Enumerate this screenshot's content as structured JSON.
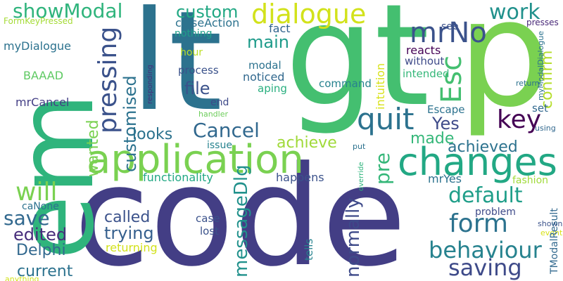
{
  "words": [
    {
      "text": "code",
      "color": "#433e85"
    },
    {
      "text": "gt",
      "color": "#44bf70"
    },
    {
      "text": "lt",
      "color": "#2c728e"
    },
    {
      "text": "p",
      "color": "#7ad151"
    },
    {
      "text": "em",
      "color": "#2fb47c"
    },
    {
      "text": "application",
      "color": "#7ad151"
    },
    {
      "text": "changes",
      "color": "#22a884"
    },
    {
      "text": "dialogue",
      "color": "#d2e21b"
    },
    {
      "text": "showModal",
      "color": "#2fb47c"
    },
    {
      "text": "mrNo",
      "color": "#3b528b"
    },
    {
      "text": "work",
      "color": "#21918c"
    },
    {
      "text": "quit",
      "color": "#2c728e"
    },
    {
      "text": "Esc",
      "color": "#44bf70"
    },
    {
      "text": "key",
      "color": "#440154"
    },
    {
      "text": "pressing",
      "color": "#3b528b"
    },
    {
      "text": "form",
      "color": "#2c728e"
    },
    {
      "text": "default",
      "color": "#1f9e89"
    },
    {
      "text": "saving",
      "color": "#3e4a89"
    },
    {
      "text": "behaviour",
      "color": "#26828e"
    },
    {
      "text": "will",
      "color": "#7ad151"
    },
    {
      "text": "save",
      "color": "#31688e"
    },
    {
      "text": "Cancel",
      "color": "#31688e"
    },
    {
      "text": "pre",
      "color": "#35b779"
    },
    {
      "text": "normally",
      "color": "#3e4a89"
    },
    {
      "text": "messageDlg",
      "color": "#21918c"
    },
    {
      "text": "customised",
      "color": "#2c728e"
    },
    {
      "text": "custom",
      "color": "#22a884"
    },
    {
      "text": "main",
      "color": "#1e9b8a"
    },
    {
      "text": "confirm",
      "color": "#b5de2b"
    },
    {
      "text": "wanted",
      "color": "#7ad151"
    },
    {
      "text": "looks",
      "color": "#2c728e"
    },
    {
      "text": "Yes",
      "color": "#3e4a89"
    },
    {
      "text": "made",
      "color": "#35b779"
    },
    {
      "text": "achieve",
      "color": "#a0da39"
    },
    {
      "text": "achieved",
      "color": "#2c728e"
    },
    {
      "text": "trying",
      "color": "#355f8d"
    },
    {
      "text": "called",
      "color": "#3b528b"
    },
    {
      "text": "edited",
      "color": "#472d7b"
    },
    {
      "text": "Delphi",
      "color": "#31688e"
    },
    {
      "text": "current",
      "color": "#2c728e"
    },
    {
      "text": "file",
      "color": "#3b528b"
    },
    {
      "text": "mrCancel",
      "color": "#433e85"
    },
    {
      "text": "myDialogue",
      "color": "#2c728e"
    },
    {
      "text": "BAAAD",
      "color": "#5ec962"
    },
    {
      "text": "FormKeyPressed",
      "color": "#a5db36"
    },
    {
      "text": "closeAction",
      "color": "#2c728e"
    },
    {
      "text": "nothing",
      "color": "#1f9e89"
    },
    {
      "text": "fact",
      "color": "#32648e"
    },
    {
      "text": "hour",
      "color": "#bddf26"
    },
    {
      "text": "process",
      "color": "#3b528b"
    },
    {
      "text": "end",
      "color": "#3e4a89"
    },
    {
      "text": "issue",
      "color": "#26828e"
    },
    {
      "text": "modal",
      "color": "#2c728e"
    },
    {
      "text": "noticed",
      "color": "#31688e"
    },
    {
      "text": "aping",
      "color": "#29af7f"
    },
    {
      "text": "command",
      "color": "#26828e"
    },
    {
      "text": "intuition",
      "color": "#d8e219"
    },
    {
      "text": "reacts",
      "color": "#440154"
    },
    {
      "text": "without",
      "color": "#3e4a89"
    },
    {
      "text": "intended",
      "color": "#35b779"
    },
    {
      "text": "see",
      "color": "#3b528b"
    },
    {
      "text": "presses",
      "color": "#482878"
    },
    {
      "text": "myModalDialogue",
      "color": "#2c728e"
    },
    {
      "text": "return",
      "color": "#2c728e"
    },
    {
      "text": "set",
      "color": "#31688e"
    },
    {
      "text": "using",
      "color": "#31688e"
    },
    {
      "text": "Escape",
      "color": "#2c728e"
    },
    {
      "text": "responding",
      "color": "#472d7b"
    },
    {
      "text": "handler",
      "color": "#6ccd5a"
    },
    {
      "text": "put",
      "color": "#2c728e"
    },
    {
      "text": "functionality",
      "color": "#22a884"
    },
    {
      "text": "happens",
      "color": "#3b528b"
    },
    {
      "text": "override",
      "color": "#2fb47c"
    },
    {
      "text": "mrYes",
      "color": "#2c728e"
    },
    {
      "text": "fashion",
      "color": "#a0da39"
    },
    {
      "text": "problem",
      "color": "#3e4a89"
    },
    {
      "text": "shown",
      "color": "#3b528b"
    },
    {
      "text": "event",
      "color": "#d8e219"
    },
    {
      "text": "TModalResult",
      "color": "#31688e"
    },
    {
      "text": "caNone",
      "color": "#2c728e"
    },
    {
      "text": "case",
      "color": "#3b528b"
    },
    {
      "text": "lost",
      "color": "#3b528b"
    },
    {
      "text": "tells",
      "color": "#26828e"
    },
    {
      "text": "returning",
      "color": "#d2e21b"
    },
    {
      "text": "anything",
      "color": "#d2e21b"
    }
  ]
}
